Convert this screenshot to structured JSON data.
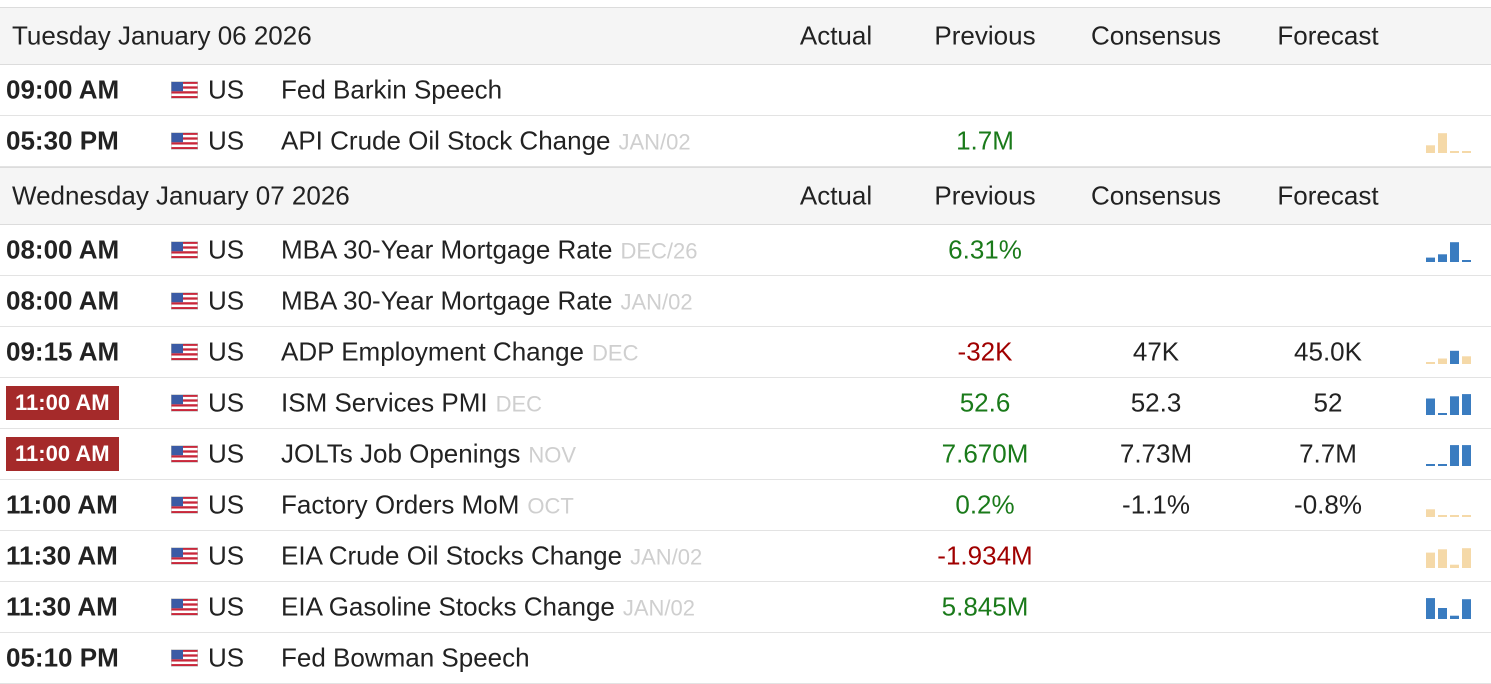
{
  "groups": [
    {
      "date": "Tuesday January 06 2026",
      "columns": {
        "actual": "Actual",
        "previous": "Previous",
        "consensus": "Consensus",
        "forecast": "Forecast"
      },
      "events": [
        {
          "time": "09:00 AM",
          "live": false,
          "country": "US",
          "event": "Fed Barkin Speech",
          "ref": "",
          "actual": "",
          "previous": "",
          "previous_color": "green",
          "consensus": "",
          "forecast": "",
          "spark": null
        },
        {
          "time": "05:30 PM",
          "live": false,
          "country": "US",
          "event": "API Crude Oil Stock Change",
          "ref": "JAN/02",
          "actual": "",
          "previous": "1.7M",
          "previous_color": "green",
          "consensus": "",
          "forecast": "",
          "spark": {
            "color": "#f5d9a8",
            "values": [
              0.35,
              0.9,
              0.05,
              0.05
            ]
          }
        }
      ]
    },
    {
      "date": "Wednesday January 07 2026",
      "columns": {
        "actual": "Actual",
        "previous": "Previous",
        "consensus": "Consensus",
        "forecast": "Forecast"
      },
      "events": [
        {
          "time": "08:00 AM",
          "live": false,
          "country": "US",
          "event": "MBA 30-Year Mortgage Rate",
          "ref": "DEC/26",
          "actual": "",
          "previous": "6.31%",
          "previous_color": "green",
          "consensus": "",
          "forecast": "",
          "spark": {
            "color": "#3a7cc0",
            "values": [
              0.2,
              0.35,
              0.9,
              0.05
            ]
          }
        },
        {
          "time": "08:00 AM",
          "live": false,
          "country": "US",
          "event": "MBA 30-Year Mortgage Rate",
          "ref": "JAN/02",
          "actual": "",
          "previous": "",
          "previous_color": "green",
          "consensus": "",
          "forecast": "",
          "spark": null
        },
        {
          "time": "09:15 AM",
          "live": false,
          "country": "US",
          "event": "ADP Employment Change",
          "ref": "DEC",
          "actual": "",
          "previous": "-32K",
          "previous_color": "red",
          "consensus": "47K",
          "forecast": "45.0K",
          "spark": {
            "color": "#f5d9a8",
            "values": [
              0.05,
              0.25,
              0.6,
              0.35
            ],
            "highlight": [
              2
            ],
            "highlight_color": "#3a7cc0"
          }
        },
        {
          "time": "11:00 AM",
          "live": true,
          "country": "US",
          "event": "ISM Services PMI",
          "ref": "DEC",
          "actual": "",
          "previous": "52.6",
          "previous_color": "green",
          "consensus": "52.3",
          "forecast": "52",
          "spark": {
            "color": "#3a7cc0",
            "values": [
              0.75,
              0.05,
              0.85,
              0.95
            ]
          }
        },
        {
          "time": "11:00 AM",
          "live": true,
          "country": "US",
          "event": "JOLTs Job Openings",
          "ref": "NOV",
          "actual": "",
          "previous": "7.670M",
          "previous_color": "green",
          "consensus": "7.73M",
          "forecast": "7.7M",
          "spark": {
            "color": "#3a7cc0",
            "values": [
              0.05,
              0.05,
              0.95,
              0.95
            ]
          }
        },
        {
          "time": "11:00 AM",
          "live": false,
          "country": "US",
          "event": "Factory Orders MoM",
          "ref": "OCT",
          "actual": "",
          "previous": "0.2%",
          "previous_color": "green",
          "consensus": "-1.1%",
          "forecast": "-0.8%",
          "spark": {
            "color": "#f5d9a8",
            "values": [
              0.35,
              0.05,
              0.05,
              0.05
            ]
          }
        },
        {
          "time": "11:30 AM",
          "live": false,
          "country": "US",
          "event": "EIA Crude Oil Stocks Change",
          "ref": "JAN/02",
          "actual": "",
          "previous": "-1.934M",
          "previous_color": "red",
          "consensus": "",
          "forecast": "",
          "spark": {
            "color": "#f5d9a8",
            "values": [
              0.7,
              0.85,
              0.15,
              0.9
            ]
          }
        },
        {
          "time": "11:30 AM",
          "live": false,
          "country": "US",
          "event": "EIA Gasoline Stocks Change",
          "ref": "JAN/02",
          "actual": "",
          "previous": "5.845M",
          "previous_color": "green",
          "consensus": "",
          "forecast": "",
          "spark": {
            "color": "#3a7cc0",
            "values": [
              0.95,
              0.5,
              0.15,
              0.9
            ]
          }
        },
        {
          "time": "05:10 PM",
          "live": false,
          "country": "US",
          "event": "Fed Bowman Speech",
          "ref": "",
          "actual": "",
          "previous": "",
          "previous_color": "green",
          "consensus": "",
          "forecast": "",
          "spark": null
        }
      ]
    }
  ]
}
